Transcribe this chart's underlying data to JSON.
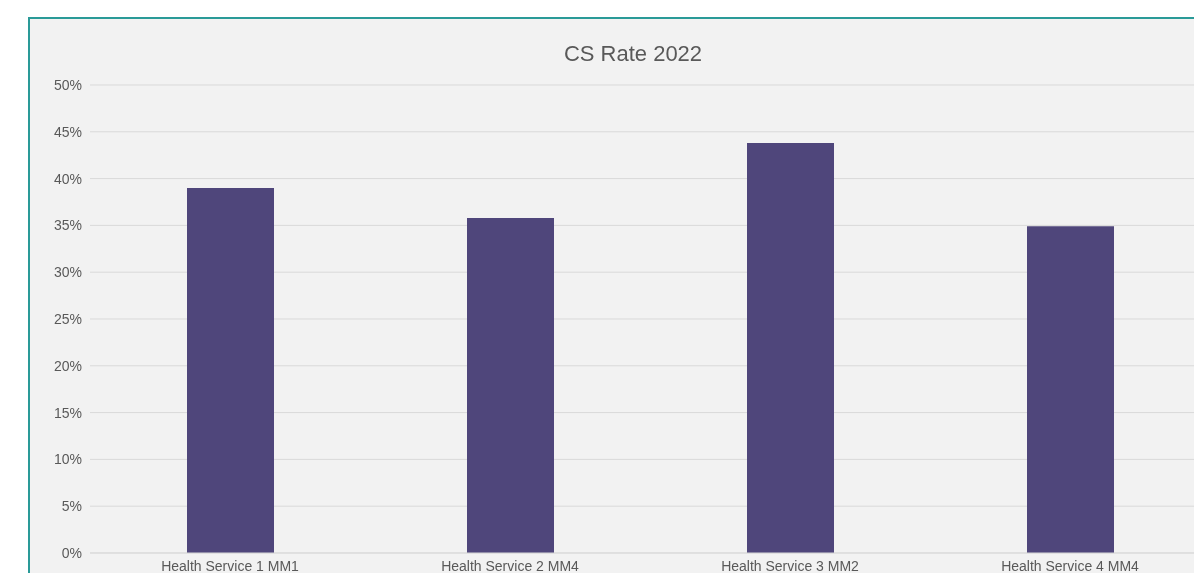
{
  "chart_data": {
    "type": "bar",
    "title": "CS Rate 2022",
    "categories": [
      "Health Service 1 MM1",
      "Health Service 2 MM4",
      "Health Service 3 MM2",
      "Health Service 4 MM4"
    ],
    "values": [
      39.0,
      35.8,
      43.8,
      34.9
    ],
    "color": "#4f467b",
    "ylim": [
      0,
      50
    ],
    "yticks": [
      {
        "value": 0,
        "label": "0%"
      },
      {
        "value": 5,
        "label": "5%"
      },
      {
        "value": 10,
        "label": "10%"
      },
      {
        "value": 15,
        "label": "15%"
      },
      {
        "value": 20,
        "label": "20%"
      },
      {
        "value": 25,
        "label": "25%"
      },
      {
        "value": 30,
        "label": "30%"
      },
      {
        "value": 35,
        "label": "35%"
      },
      {
        "value": 40,
        "label": "40%"
      },
      {
        "value": 45,
        "label": "45%"
      },
      {
        "value": 50,
        "label": "50%"
      }
    ],
    "grid": "y"
  }
}
